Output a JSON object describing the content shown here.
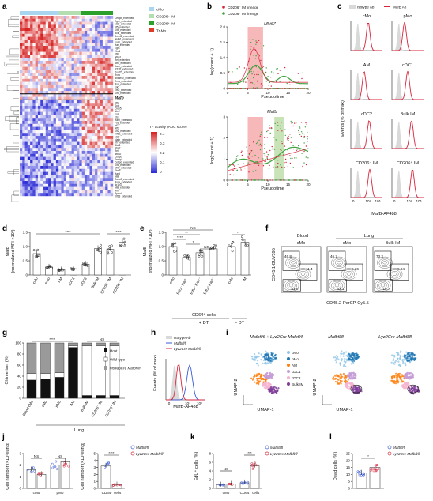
{
  "panels": {
    "a": "a",
    "b": "b",
    "c": "c",
    "d": "d",
    "e": "e",
    "f": "f",
    "g": "g",
    "h": "h",
    "i": "i",
    "j": "j",
    "k": "k",
    "l": "l"
  },
  "a": {
    "legend": [
      "cMo",
      "CD206⁻ IM",
      "CD206⁺ IM",
      "Tr-Mo"
    ],
    "legend_colors": [
      "#a9d5f0",
      "#b4ddb0",
      "#2ba02b",
      "#e23a2a"
    ],
    "colorbar_title": "TF activity (AUC score)",
    "colorbar_ticks": [
      "0.4",
      "0.3",
      "0.2",
      "0.1",
      "0"
    ],
    "mafb_label": "Mafb",
    "genes_top": [
      "Cebpb_extended",
      "Egr1_extended",
      "Maff_extended",
      "Irf5_extended",
      "Klf4_extended",
      "Bcl6_extended",
      "Srebf2_extended",
      "Nr4a1_extended",
      "Fosb_extended",
      "Jun_extended",
      "Egr1",
      "Ybx1",
      "Irf8",
      "Nfkb1",
      "Rel_extended",
      "Atf4_extended",
      "Junb_extended",
      "Tcf7l2_extended",
      "Pou2f2_extended",
      "Rxra",
      "Bhlhe40_extended",
      "Rxra_extended",
      "Rxa_extended",
      "Elk3",
      "Ets2_extended",
      "Klf9_extended"
    ],
    "genes_bottom": [
      "Irf9",
      "Spic",
      "Creb5",
      "Nfe2",
      "Fos",
      "Ets1",
      "Junb_extended",
      "Fos_extended",
      "Irf7",
      "Atf3",
      "Klf2_extended",
      "Hif1a_extended",
      "Maff",
      "Mafb_extended",
      "Irf7_extended",
      "Stat1",
      "Stat2",
      "Rel",
      "Nfkb2",
      "Cebpb",
      "Srebp2",
      "Cebpd_extended",
      "Klf5_extended",
      "Nfil3_extended",
      "Stat6",
      "Jund",
      "Maf",
      "Runx2_extended",
      "Rora_extended",
      "Nr1h3",
      "Maf_extended",
      "Ahr",
      "Ppard",
      "Klf13_extended"
    ]
  },
  "b": {
    "legend": [
      "CD206⁻ IM lineage",
      "CD206⁺ IM lineage"
    ],
    "gene1": "Mki67",
    "gene2": "Mafb",
    "ylabel": "log(count + 1)",
    "xlabel": "Pseudotime",
    "xticks": [
      "0",
      "5",
      "10",
      "15",
      "20"
    ],
    "yticks1": [
      "2.0",
      "1.5",
      "1.0",
      "0.5",
      "0"
    ],
    "yticks2": [
      "3",
      "2",
      "1",
      "0"
    ]
  },
  "c": {
    "legend": [
      "Isotype Ab",
      "MafB Ab"
    ],
    "cells": [
      "cMo",
      "pMo",
      "AM",
      "cDC1",
      "cDC2",
      "Bulk IM",
      "CD206⁻ IM",
      "CD206⁺ IM"
    ],
    "ylabel": "Events (% of max)",
    "xlabel": "MafB-AF488",
    "xticks": [
      "0",
      "10⁴",
      "10⁵"
    ]
  },
  "d": {
    "ylabel": "MafB",
    "ylabel2": "(normalized MFI ×10³)",
    "yticks": [
      "1.5",
      "1.0",
      "0.5",
      "0"
    ],
    "categories": [
      "cMo",
      "pMo",
      "AM",
      "cDC1",
      "cDC2",
      "Bulk IM",
      "CD206⁻ IM",
      "CD206⁺ IM"
    ],
    "sig": [
      "****",
      "****"
    ]
  },
  "e": {
    "ylabel": "MafB",
    "ylabel2": "(normalized MFI ×10³)",
    "yticks": [
      "1.5",
      "1.0",
      "0.5",
      "0"
    ],
    "categories": [
      "cMo",
      "EdU⁻ Ki67⁻",
      "EdU⁺ Ki67⁻",
      "EdU⁺ Ki67⁺",
      "cMo",
      "IM"
    ],
    "sig": [
      "NS",
      "**",
      "****",
      "*",
      "NS",
      "**"
    ],
    "group1": "CD64⁺ cells",
    "dt1": "+ DT",
    "dt2": "− DT"
  },
  "f": {
    "blood": "Blood",
    "lung": "Lung",
    "sub": [
      "cMo",
      "cMo",
      "Bulk IM"
    ],
    "ylabel": "CD45.1-BUV395",
    "xlabel": "CD45.2-PerCP-Cy5.5",
    "numbers": [
      [
        "46.8",
        "11.4",
        "41.0"
      ],
      [
        "46.7",
        "9.26",
        "43.1"
      ],
      [
        "73.2",
        "9.04",
        "16.7"
      ]
    ]
  },
  "g": {
    "ylabel": "Chimerism (%)",
    "yticks": [
      "100",
      "80",
      "60",
      "40",
      "20",
      "0"
    ],
    "categories": [
      "Blood cMo",
      "cMo",
      "pMo",
      "AM",
      "Bulk IM",
      "CD206⁻ IM",
      "CD206⁺ IM"
    ],
    "lung": "Lung",
    "legend": [
      "Host",
      "Wild-type",
      "Ms4a3Cre Mafbfl/fl"
    ],
    "sig": [
      "****",
      "NS"
    ]
  },
  "h": {
    "legend": [
      "Isotype Ab",
      "Mafbfl/fl",
      "Lyz2Cre Mafbfl/fl"
    ],
    "ylabel": "Events (% of max)",
    "xlabel": "MafB-AF488",
    "xticks": [
      "0",
      "10⁴",
      "10⁵"
    ]
  },
  "i": {
    "titles": [
      "Mafbfl/fl + Lyz2Cre Mafbfl/fl",
      "Mafbfl/fl",
      "Lyz2Cre Mafbfl/fl"
    ],
    "legend": [
      "cMo",
      "pMo",
      "AM",
      "cDC1",
      "cDC2",
      "Bulk IM"
    ],
    "legend_colors": [
      "#8fc6e8",
      "#1f77b4",
      "#ff7f0e",
      "#c49bd6",
      "#f5b4d0",
      "#7f3f98"
    ],
    "xlabel": "UMAP-1",
    "ylabel": "UMAP-2"
  },
  "j": {
    "ylabel": "Cell number (×10⁵/lung)",
    "yticks": [
      "3",
      "2",
      "1",
      "0"
    ],
    "yticks2": [
      "5",
      "4",
      "3",
      "2",
      "1",
      "0"
    ],
    "categories": [
      "cMo",
      "pMo"
    ],
    "category2": "CD64⁺ cells",
    "sig": [
      "NS",
      "NS",
      "****"
    ],
    "legend": [
      "Mafbfl/fl",
      "Lyz2Cre Mafbfl/fl"
    ]
  },
  "k": {
    "ylabel": "EdU⁺ cells (%)",
    "yticks": [
      "8",
      "6",
      "4",
      "2",
      "0"
    ],
    "categories": [
      "cMo",
      "CD64⁺ cells"
    ],
    "sig": [
      "NS",
      "***"
    ],
    "legend": [
      "Mafbfl/fl",
      "Lyz2Cre Mafbfl/fl"
    ]
  },
  "l": {
    "ylabel": "Dead cells (%)",
    "yticks": [
      "25",
      "20",
      "15",
      "10",
      "5",
      "0"
    ],
    "sig": [
      "*"
    ],
    "legend": [
      "Mafbfl/fl",
      "Lyz2Cre Mafbfl/fl"
    ]
  },
  "colors": {
    "red": "#d7263d",
    "blue": "#3b5bd6",
    "green": "#3fa33f",
    "grey": "#9a9a9a"
  },
  "chart_data": [
    {
      "type": "bar",
      "panel": "d",
      "categories": [
        "cMo",
        "pMo",
        "AM",
        "cDC1",
        "cDC2",
        "Bulk IM",
        "CD206⁻ IM",
        "CD206⁺ IM"
      ],
      "values": [
        0.75,
        0.28,
        0.18,
        0.22,
        0.38,
        0.93,
        0.9,
        1.15
      ],
      "ylim": [
        0,
        1.5
      ]
    },
    {
      "type": "bar",
      "panel": "e",
      "categories": [
        "cMo",
        "EdU⁻ Ki67⁻",
        "EdU⁺ Ki67⁻",
        "EdU⁺ Ki67⁺",
        "cMo",
        "IM"
      ],
      "values": [
        1.0,
        0.62,
        0.78,
        0.92,
        1.0,
        1.15
      ],
      "ylim": [
        0,
        1.5
      ]
    },
    {
      "type": "bar",
      "panel": "g",
      "categories": [
        "Blood cMo",
        "cMo",
        "pMo",
        "AM",
        "Bulk IM",
        "CD206⁻ IM",
        "CD206⁺ IM"
      ],
      "series": [
        {
          "name": "Host",
          "values": [
            33,
            35,
            38,
            92,
            5,
            5,
            5
          ]
        },
        {
          "name": "Wild-type",
          "values": [
            12,
            10,
            8,
            3,
            90,
            90,
            90
          ]
        },
        {
          "name": "Ms4a3Cre Mafbfl/fl",
          "values": [
            55,
            55,
            54,
            5,
            5,
            5,
            5
          ]
        }
      ],
      "ylim": [
        0,
        100
      ]
    },
    {
      "type": "bar",
      "panel": "j",
      "categories": [
        "cMo",
        "pMo"
      ],
      "series": [
        {
          "name": "Mafbfl/fl",
          "values": [
            1.6,
            2.0
          ]
        },
        {
          "name": "Lyz2Cre Mafbfl/fl",
          "values": [
            1.2,
            2.3
          ]
        }
      ],
      "ylim": [
        0,
        3
      ]
    },
    {
      "type": "bar",
      "panel": "j2",
      "categories": [
        "CD64⁺ cells"
      ],
      "series": [
        {
          "name": "Mafbfl/fl",
          "values": [
            3.2
          ]
        },
        {
          "name": "Lyz2Cre Mafbfl/fl",
          "values": [
            0.5
          ]
        }
      ],
      "ylim": [
        0,
        5
      ]
    },
    {
      "type": "bar",
      "panel": "k",
      "categories": [
        "cMo",
        "CD64⁺ cells"
      ],
      "series": [
        {
          "name": "Mafbfl/fl",
          "values": [
            0.8,
            1.3
          ]
        },
        {
          "name": "Lyz2Cre Mafbfl/fl",
          "values": [
            1.0,
            5.2
          ]
        }
      ],
      "ylim": [
        0,
        8
      ]
    },
    {
      "type": "bar",
      "panel": "l",
      "categories": [
        "Mafbfl/fl",
        "Lyz2Cre Mafbfl/fl"
      ],
      "values": [
        11,
        15
      ],
      "ylim": [
        0,
        25
      ]
    }
  ]
}
